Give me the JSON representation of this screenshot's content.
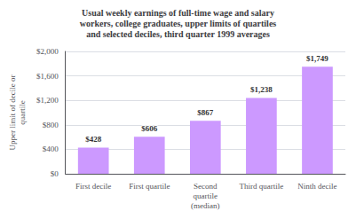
{
  "chart_data": {
    "type": "bar",
    "title": "Usual weekly earnings of full-time wage and salary\nworkers, college graduates, upper limits of quartiles\nand selected deciles, third quarter 1999 averages",
    "categories": [
      "First decile",
      "First quartile",
      "Second\nquartile\n(median)",
      "Third quartile",
      "Ninth decile"
    ],
    "values": [
      428,
      606,
      867,
      1238,
      1749
    ],
    "value_labels": [
      "$428",
      "$606",
      "$867",
      "$1,238",
      "$1,749"
    ],
    "data_labels": true,
    "color": "#cc99ff",
    "ylabel": "Upper limit of decile or\nquartile",
    "ylim": [
      0,
      2000
    ],
    "yticks": [
      {
        "value": 0,
        "label": "$0"
      },
      {
        "value": 400,
        "label": "$400"
      },
      {
        "value": 800,
        "label": "$800"
      },
      {
        "value": 1200,
        "label": "$1,200"
      },
      {
        "value": 1600,
        "label": "$1,600"
      },
      {
        "value": 2000,
        "label": "$2,000"
      }
    ],
    "grid": true
  }
}
